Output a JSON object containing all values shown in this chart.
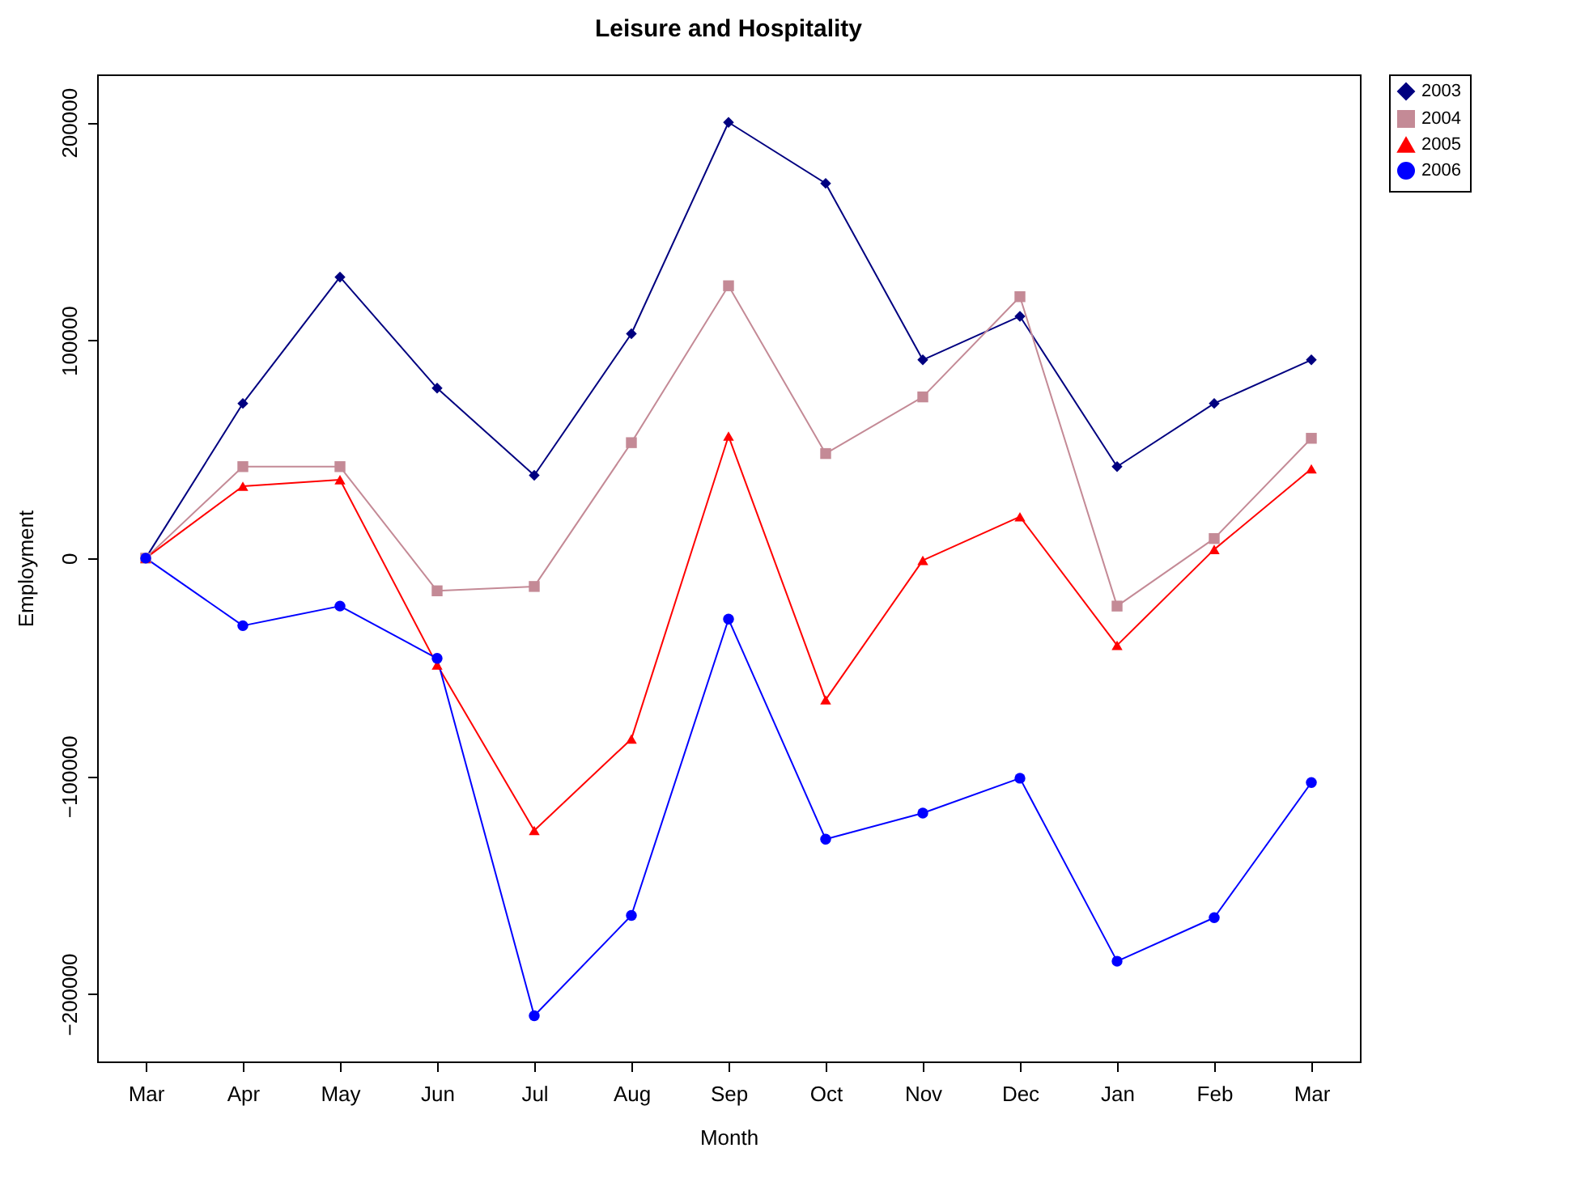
{
  "chart_data": {
    "type": "line",
    "title": "Leisure and Hospitality",
    "xlabel": "Month",
    "ylabel": "Employment",
    "categories": [
      "Mar",
      "Apr",
      "May",
      "Jun",
      "Jul",
      "Aug",
      "Sep",
      "Oct",
      "Nov",
      "Dec",
      "Jan",
      "Feb",
      "Mar"
    ],
    "series": [
      {
        "name": "2003",
        "color": "#000080",
        "marker": "diamond",
        "values": [
          0,
          71000,
          129000,
          78000,
          38000,
          103000,
          200000,
          172000,
          91000,
          111000,
          42000,
          71000,
          91000
        ]
      },
      {
        "name": "2004",
        "color": "#c48a96",
        "marker": "square",
        "values": [
          0,
          42000,
          42000,
          -15000,
          -13000,
          53000,
          125000,
          48000,
          74000,
          120000,
          -22000,
          9000,
          55000
        ]
      },
      {
        "name": "2005",
        "color": "#ff0000",
        "marker": "triangle",
        "values": [
          0,
          33000,
          36000,
          -49000,
          -125000,
          -83000,
          56000,
          -65000,
          -1000,
          19000,
          -40000,
          4000,
          41000
        ]
      },
      {
        "name": "2006",
        "color": "#0000ff",
        "marker": "circle",
        "values": [
          0,
          -31000,
          -22000,
          -46000,
          -210000,
          -164000,
          -28000,
          -129000,
          -117000,
          -101000,
          -185000,
          -165000,
          -103000
        ]
      }
    ],
    "ylim": [
      -231000,
      222000
    ],
    "yticks": [
      -200000,
      -100000,
      0,
      100000,
      200000
    ],
    "grid": false,
    "legend": "right"
  }
}
